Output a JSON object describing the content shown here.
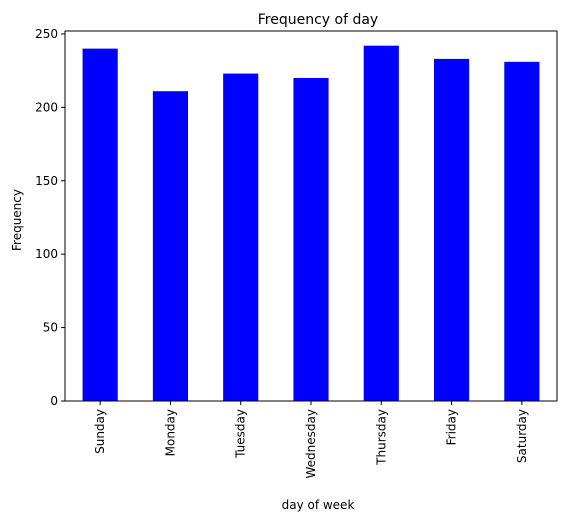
{
  "chart_data": {
    "type": "bar",
    "title": "Frequency of day",
    "xlabel": "day of week",
    "ylabel": "Frequency",
    "categories": [
      "Sunday",
      "Monday",
      "Tuesday",
      "Wednesday",
      "Thursday",
      "Friday",
      "Saturday"
    ],
    "values": [
      240,
      211,
      223,
      220,
      242,
      233,
      231
    ],
    "ylim": [
      0,
      252
    ],
    "yticks": [
      0,
      50,
      100,
      150,
      200,
      250
    ],
    "bar_color": "#0000ff",
    "grid": false,
    "legend": "none"
  }
}
